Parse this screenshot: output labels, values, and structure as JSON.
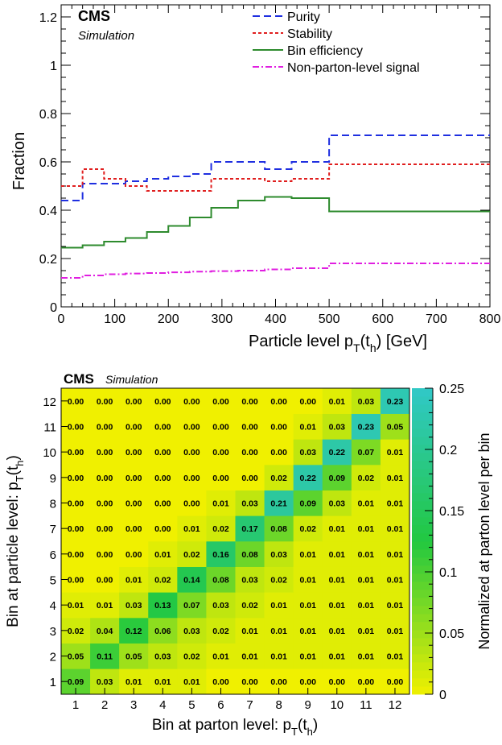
{
  "chart_data": [
    {
      "type": "line",
      "step": true,
      "badge": {
        "experiment": "CMS",
        "label": "Simulation"
      },
      "xlabel": "Particle level p_T(t_h) [GeV]",
      "ylabel": "Fraction",
      "xlim": [
        0,
        800
      ],
      "ylim": [
        0,
        1.25
      ],
      "x_ticks": [
        "0",
        "100",
        "200",
        "300",
        "400",
        "500",
        "600",
        "700",
        "800"
      ],
      "y_ticks": [
        "0",
        "0.2",
        "0.4",
        "0.6",
        "0.8",
        "1",
        "1.2"
      ],
      "legend_placement": "top-right",
      "bin_edges": [
        0,
        40,
        80,
        120,
        160,
        200,
        240,
        280,
        330,
        380,
        430,
        500,
        800
      ],
      "series": [
        {
          "name": "Purity",
          "color": "#1f2fe0",
          "style": "dashed",
          "values": [
            0.44,
            0.51,
            0.51,
            0.52,
            0.53,
            0.54,
            0.55,
            0.6,
            0.6,
            0.57,
            0.6,
            0.71
          ]
        },
        {
          "name": "Stability",
          "color": "#e01f1f",
          "style": "dotted",
          "values": [
            0.5,
            0.57,
            0.53,
            0.5,
            0.48,
            0.48,
            0.48,
            0.53,
            0.53,
            0.52,
            0.53,
            0.59
          ]
        },
        {
          "name": "Bin efficiency",
          "color": "#2e8b2e",
          "style": "solid",
          "values": [
            0.245,
            0.255,
            0.27,
            0.285,
            0.31,
            0.335,
            0.37,
            0.41,
            0.44,
            0.455,
            0.45,
            0.395
          ]
        },
        {
          "name": "Non-parton-level signal",
          "color": "#e01fe0",
          "style": "dashdot",
          "values": [
            0.12,
            0.13,
            0.135,
            0.138,
            0.14,
            0.143,
            0.146,
            0.148,
            0.15,
            0.155,
            0.16,
            0.18
          ]
        }
      ]
    },
    {
      "type": "heatmap",
      "badge": {
        "experiment": "CMS",
        "label": "Simulation"
      },
      "xlabel": "Bin at parton level: p_T(t_h)",
      "ylabel": "Bin at particle level: p_T(t_h)",
      "colorbar_label": "Normalized at parton level per bin",
      "x_categories": [
        "1",
        "2",
        "3",
        "4",
        "5",
        "6",
        "7",
        "8",
        "9",
        "10",
        "11",
        "12"
      ],
      "y_categories": [
        "1",
        "2",
        "3",
        "4",
        "5",
        "6",
        "7",
        "8",
        "9",
        "10",
        "11",
        "12"
      ],
      "colorbar_range": [
        0,
        0.25
      ],
      "colorbar_ticks": [
        "0",
        "0.05",
        "0.1",
        "0.15",
        "0.2",
        "0.25"
      ],
      "colors": {
        "low": "#f0f000",
        "mid": "#22c840",
        "high": "#30c8c8"
      },
      "values": [
        [
          "0.09",
          "0.03",
          "0.01",
          "0.01",
          "0.01",
          "0.00",
          "0.00",
          "0.00",
          "0.00",
          "0.00",
          "0.00",
          "0.00"
        ],
        [
          "0.05",
          "0.11",
          "0.05",
          "0.03",
          "0.02",
          "0.01",
          "0.01",
          "0.01",
          "0.01",
          "0.01",
          "0.01",
          "0.01"
        ],
        [
          "0.02",
          "0.04",
          "0.12",
          "0.06",
          "0.03",
          "0.02",
          "0.01",
          "0.01",
          "0.01",
          "0.01",
          "0.01",
          "0.01"
        ],
        [
          "0.01",
          "0.01",
          "0.03",
          "0.13",
          "0.07",
          "0.03",
          "0.02",
          "0.01",
          "0.01",
          "0.01",
          "0.01",
          "0.01"
        ],
        [
          "0.00",
          "0.00",
          "0.01",
          "0.02",
          "0.14",
          "0.08",
          "0.03",
          "0.02",
          "0.01",
          "0.01",
          "0.01",
          "0.01"
        ],
        [
          "0.00",
          "0.00",
          "0.00",
          "0.01",
          "0.02",
          "0.16",
          "0.08",
          "0.03",
          "0.01",
          "0.01",
          "0.01",
          "0.01"
        ],
        [
          "0.00",
          "0.00",
          "0.00",
          "0.00",
          "0.01",
          "0.02",
          "0.17",
          "0.08",
          "0.02",
          "0.01",
          "0.01",
          "0.01"
        ],
        [
          "0.00",
          "0.00",
          "0.00",
          "0.00",
          "0.00",
          "0.01",
          "0.03",
          "0.21",
          "0.09",
          "0.03",
          "0.01",
          "0.01"
        ],
        [
          "0.00",
          "0.00",
          "0.00",
          "0.00",
          "0.00",
          "0.00",
          "0.00",
          "0.02",
          "0.22",
          "0.09",
          "0.02",
          "0.01"
        ],
        [
          "0.00",
          "0.00",
          "0.00",
          "0.00",
          "0.00",
          "0.00",
          "0.00",
          "0.00",
          "0.03",
          "0.22",
          "0.07",
          "0.01"
        ],
        [
          "0.00",
          "0.00",
          "0.00",
          "0.00",
          "0.00",
          "0.00",
          "0.00",
          "0.00",
          "0.01",
          "0.03",
          "0.23",
          "0.05"
        ],
        [
          "0.00",
          "0.00",
          "0.00",
          "0.00",
          "0.00",
          "0.00",
          "0.00",
          "0.00",
          "0.00",
          "0.01",
          "0.03",
          "0.23"
        ]
      ]
    }
  ]
}
